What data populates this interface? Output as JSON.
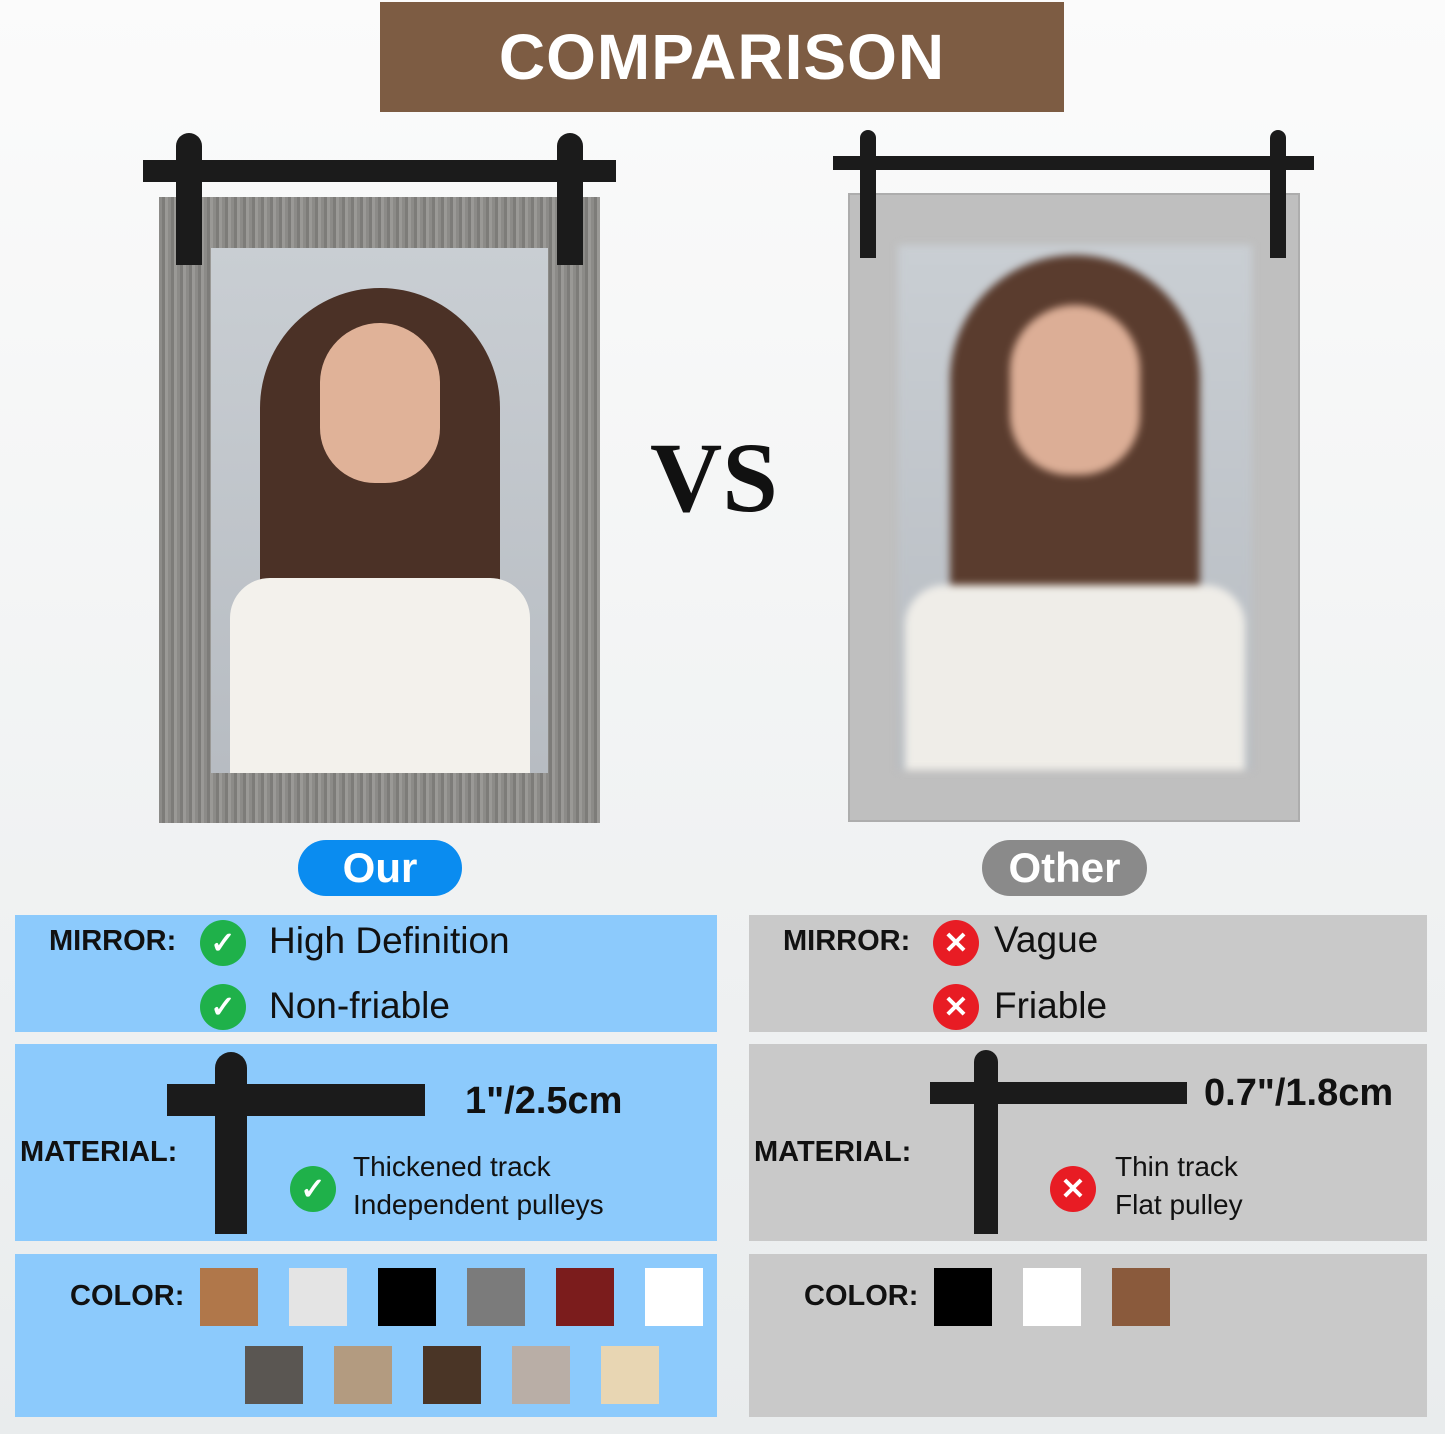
{
  "title": "COMPARISON",
  "vs": "VS",
  "our": {
    "label": "Our",
    "mirror_label": "MIRROR:",
    "mirror_points": [
      "High Definition",
      "Non-friable"
    ],
    "material_label": "MATERIAL:",
    "track_thickness": "1\"/2.5cm",
    "material_points": [
      "Thickened track",
      "Independent pulleys"
    ],
    "color_label": "COLOR:",
    "colors": [
      "#b0774a",
      "#e4e4e4",
      "#000000",
      "#7b7b7b",
      "#7b1c1c",
      "#ffffff",
      "#5a5652",
      "#b39b80",
      "#4a3526",
      "#b9aea6",
      "#e8d6b3"
    ],
    "accent": "#0a8cf0",
    "panel_color": "#8ccafc",
    "check_icon": "check-circle-icon"
  },
  "other": {
    "label": "Other",
    "mirror_label": "MIRROR:",
    "mirror_points": [
      "Vague",
      "Friable"
    ],
    "material_label": "MATERIAL:",
    "track_thickness": "0.7\"/1.8cm",
    "material_points": [
      "Thin track",
      "Flat pulley"
    ],
    "color_label": "COLOR:",
    "colors": [
      "#000000",
      "#ffffff",
      "#8a5a3c"
    ],
    "accent": "#8a8a8a",
    "panel_color": "#c9c9c9",
    "cross_icon": "x-circle-icon"
  },
  "icons": {
    "check": "✓",
    "cross": "✕"
  }
}
